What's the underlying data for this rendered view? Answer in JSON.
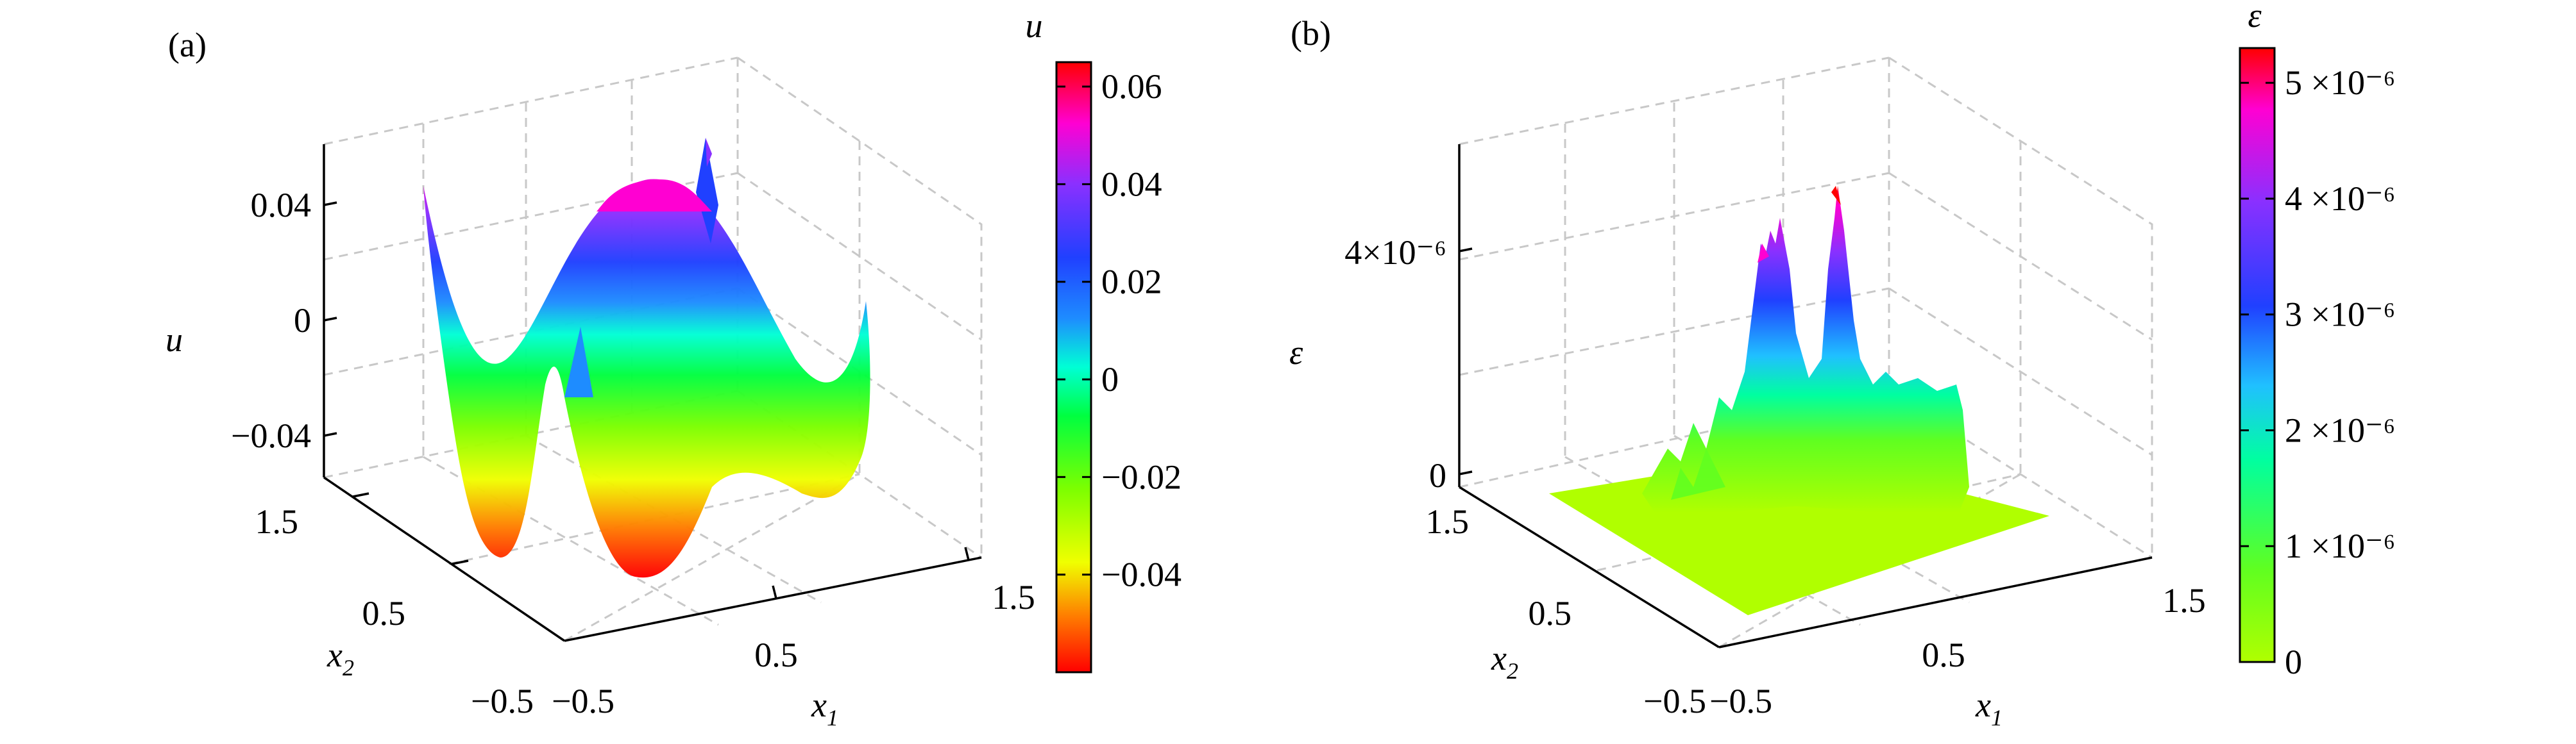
{
  "chart_data": [
    {
      "panel_label": "(a)",
      "type": "surface3d",
      "zlabel": "u",
      "xlabel": "x",
      "xlabel_sub": "1",
      "ylabel": "x",
      "ylabel_sub": "2",
      "x_ticks": [
        "−0.5",
        "0.5",
        "1.5"
      ],
      "y_ticks": [
        "−0.5",
        "0.5",
        "1.5"
      ],
      "z_ticks": [
        "−0.04",
        "0",
        "0.04"
      ],
      "xlim": [
        -0.5,
        1.5
      ],
      "ylim": [
        -0.5,
        1.5
      ],
      "zlim": [
        -0.06,
        0.06
      ],
      "colorbar": {
        "title": "u",
        "ticks": [
          "0.06",
          "0.04",
          "0.02",
          "0",
          "−0.02",
          "−0.04"
        ],
        "range": [
          -0.06,
          0.065
        ],
        "colors": [
          "#ff0000",
          "#ff7a00",
          "#f0ff00",
          "#7dff00",
          "#00ff40",
          "#00ffd5",
          "#1e8cff",
          "#2040ff",
          "#8a30ff",
          "#ff00d2",
          "#ff0000"
        ]
      },
      "surface_description": "double-well surface: high peak near center (~0.06), minima near corners (~-0.06)"
    },
    {
      "panel_label": "(b)",
      "type": "surface3d",
      "zlabel": "ε",
      "xlabel": "x",
      "xlabel_sub": "1",
      "ylabel": "x",
      "ylabel_sub": "2",
      "x_ticks": [
        "−0.5",
        "0.5",
        "1.5"
      ],
      "y_ticks": [
        "−0.5",
        "0.5",
        "1.5"
      ],
      "z_ticks": [
        "0",
        "4×10⁻⁶"
      ],
      "xlim": [
        -0.5,
        1.5
      ],
      "ylim": [
        -0.5,
        1.5
      ],
      "zlim": [
        0,
        6e-06
      ],
      "colorbar": {
        "title": "ε",
        "ticks": [
          "5 ×10⁻⁶",
          "4 ×10⁻⁶",
          "3 ×10⁻⁶",
          "2 ×10⁻⁶",
          "1 ×10⁻⁶",
          "0"
        ],
        "range": [
          0,
          5.3e-06
        ],
        "colors": [
          "#b0ff00",
          "#60ff20",
          "#00ffa0",
          "#20c0ff",
          "#2040ff",
          "#8a30ff",
          "#ff00d2",
          "#ff0000"
        ]
      },
      "surface_description": "error surface: flat near zero with noisy spikes, two peaks near ~5e-6"
    }
  ]
}
